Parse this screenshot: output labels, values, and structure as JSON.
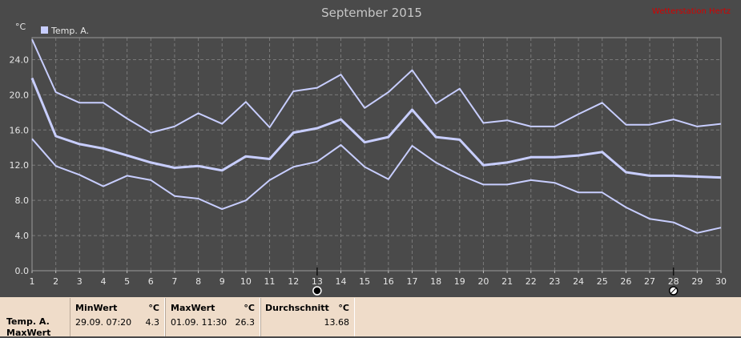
{
  "chart_data": {
    "type": "line",
    "title": "September 2015",
    "unit_label": "°C",
    "watermark": "Wetterstation Hertz",
    "legend": "Temp. A.",
    "legend_placement": "top-left",
    "grid": true,
    "ylim": [
      0,
      26.5
    ],
    "y_ticks": [
      "0.0",
      "4.0",
      "8.0",
      "12.0",
      "16.0",
      "20.0",
      "24.0"
    ],
    "x": [
      1,
      2,
      3,
      4,
      5,
      6,
      7,
      8,
      9,
      10,
      11,
      12,
      13,
      14,
      15,
      16,
      17,
      18,
      19,
      20,
      21,
      22,
      23,
      24,
      25,
      26,
      27,
      28,
      29,
      30
    ],
    "x_tick_labels": [
      "1",
      "2",
      "3",
      "4",
      "5",
      "6",
      "7",
      "8",
      "9",
      "10",
      "11",
      "12",
      "13",
      "14",
      "15",
      "16",
      "17",
      "18",
      "19",
      "20",
      "21",
      "22",
      "23",
      "24",
      "25",
      "26",
      "27",
      "28",
      "29",
      "30"
    ],
    "moon_phases": [
      {
        "day": 13,
        "phase": "new-moon"
      },
      {
        "day": 28,
        "phase": "full-moon"
      }
    ],
    "series": [
      {
        "role": "max",
        "color": "#c8ceff",
        "values": [
          26.3,
          20.3,
          19.1,
          19.1,
          17.3,
          15.7,
          16.4,
          17.9,
          16.7,
          19.2,
          16.3,
          20.4,
          20.8,
          22.3,
          18.5,
          20.3,
          22.8,
          19.0,
          20.7,
          16.8,
          17.1,
          16.4,
          16.4,
          17.8,
          19.1,
          16.6,
          16.6,
          17.2,
          16.4,
          16.7
        ]
      },
      {
        "role": "avg",
        "color": "#c8ceff",
        "values": [
          21.9,
          15.3,
          14.4,
          13.9,
          13.1,
          12.3,
          11.7,
          11.9,
          11.4,
          13.0,
          12.7,
          15.7,
          16.2,
          17.2,
          14.6,
          15.2,
          18.3,
          15.2,
          14.9,
          12.0,
          12.3,
          12.9,
          12.9,
          13.1,
          13.5,
          11.2,
          10.8,
          10.8,
          10.7,
          10.6
        ]
      },
      {
        "role": "min",
        "color": "#c8ceff",
        "values": [
          15.0,
          11.9,
          10.9,
          9.6,
          10.8,
          10.3,
          8.5,
          8.2,
          7.0,
          8.0,
          10.3,
          11.8,
          12.4,
          14.3,
          11.8,
          10.4,
          14.2,
          12.3,
          10.9,
          9.8,
          9.8,
          10.3,
          10.0,
          8.9,
          8.9,
          7.2,
          5.9,
          5.5,
          4.3,
          4.9
        ]
      }
    ]
  },
  "stats": {
    "sensor_label": "Temp. A.",
    "row_label": "MaxWert",
    "min": {
      "header": "MinWert",
      "unit": "°C",
      "when": "29.09.  07:20",
      "value": "4.3"
    },
    "max": {
      "header": "MaxWert",
      "unit": "°C",
      "when": "01.09.  11:30",
      "value": "26.3"
    },
    "avg": {
      "header": "Durchschnitt",
      "unit": "°C",
      "value": "13.68"
    }
  }
}
